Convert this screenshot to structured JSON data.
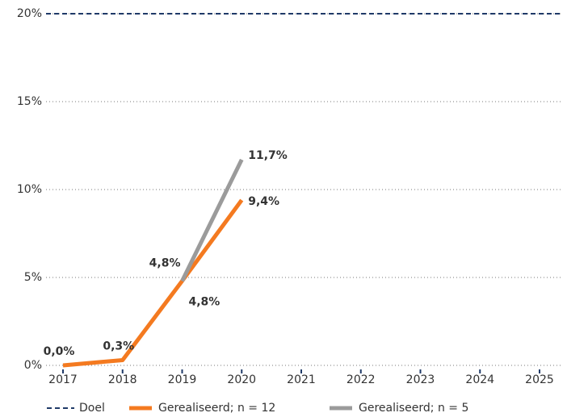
{
  "chart_data": {
    "type": "line",
    "categories": [
      "2017",
      "2018",
      "2019",
      "2020",
      "2021",
      "2022",
      "2023",
      "2024",
      "2025"
    ],
    "series": [
      {
        "name": "Doel",
        "color": "#1f3a68",
        "dashed": true,
        "values": [
          20,
          20,
          20,
          20,
          20,
          20,
          20,
          20,
          20
        ]
      },
      {
        "name": "Gerealiseerd; n = 12",
        "color": "#f47a20",
        "values": [
          0,
          0.3,
          4.8,
          9.4,
          null,
          null,
          null,
          null,
          null
        ],
        "value_labels": [
          "0,0%",
          "0,3%",
          "4,8%",
          "9,4%",
          null,
          null,
          null,
          null,
          null
        ]
      },
      {
        "name": "Gerealiseerd; n = 5",
        "color": "#9b9b9b",
        "values": [
          null,
          null,
          4.8,
          11.7,
          null,
          null,
          null,
          null,
          null
        ],
        "value_labels": [
          null,
          null,
          "4,8%",
          "11,7%",
          null,
          null,
          null,
          null,
          null
        ]
      }
    ],
    "ylim": [
      0,
      20
    ],
    "yticks": [
      {
        "value": 0,
        "label": "0%"
      },
      {
        "value": 5,
        "label": "5%"
      },
      {
        "value": 10,
        "label": "10%"
      },
      {
        "value": 15,
        "label": "15%"
      },
      {
        "value": 20,
        "label": "20%"
      }
    ],
    "grid": true,
    "legend": "bottom"
  }
}
